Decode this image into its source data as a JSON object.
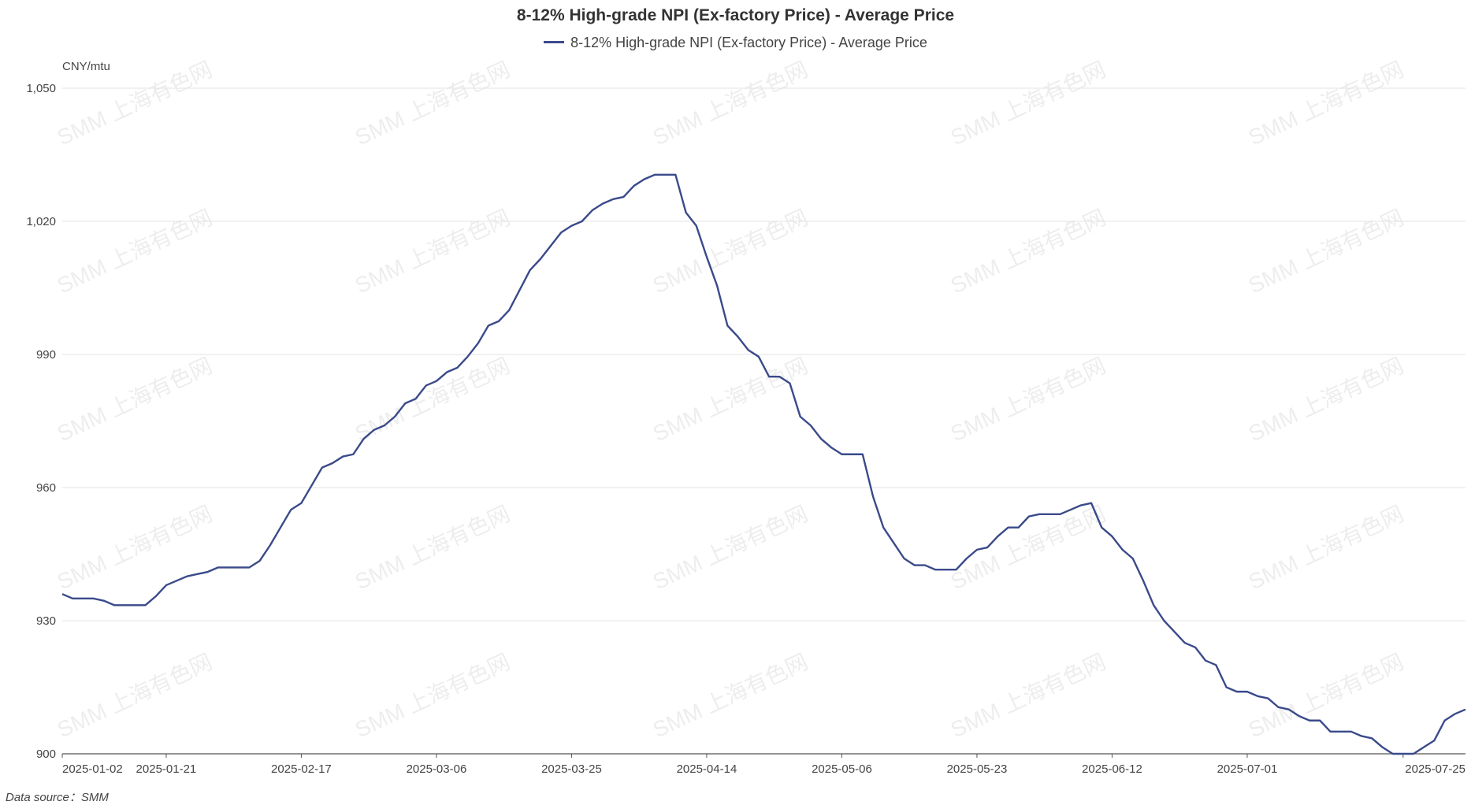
{
  "chart_data": {
    "type": "line",
    "title": "8-12% High-grade NPI (Ex-factory Price) - Average Price",
    "unit": "CNY/mtu",
    "source_label": "Data source：SMM",
    "watermark": "SMM 上海有色网",
    "ylim": [
      900,
      1050
    ],
    "yticks": [
      "1,050",
      "1,020",
      "990",
      "960",
      "930",
      "900"
    ],
    "ytick_values": [
      1050,
      1020,
      990,
      960,
      930,
      900
    ],
    "xtick_labels": [
      "2025-01-02",
      "2025-01-21",
      "2025-02-17",
      "2025-03-06",
      "2025-03-25",
      "2025-04-14",
      "2025-05-06",
      "2025-05-23",
      "2025-06-12",
      "2025-07-01",
      "2025-07-25"
    ],
    "xtick_indices": [
      0,
      10,
      23,
      36,
      49,
      62,
      75,
      88,
      101,
      114,
      129
    ],
    "grid": true,
    "legend_position": "top-center",
    "series": [
      {
        "name": "8-12% High-grade NPI (Ex-factory Price) - Average Price",
        "color": "#3a4a8a",
        "values": [
          936,
          935,
          935,
          935,
          934.5,
          933.5,
          933.5,
          933.5,
          933.5,
          935.5,
          938,
          939,
          940,
          940.5,
          941,
          942,
          942,
          942,
          942,
          943.5,
          947,
          951,
          955,
          956.5,
          960.5,
          964.5,
          965.5,
          967,
          967.5,
          971,
          973,
          974,
          976,
          979,
          980,
          983,
          984,
          986,
          987,
          989.5,
          992.5,
          996.5,
          997.5,
          1000,
          1004.5,
          1009,
          1011.5,
          1014.5,
          1017.5,
          1019,
          1020,
          1022.5,
          1024,
          1025,
          1025.5,
          1028,
          1029.5,
          1030.5,
          1030.5,
          1030.5,
          1022,
          1019,
          1012,
          1005.5,
          996.5,
          994,
          991,
          989.5,
          985,
          985,
          983.5,
          976,
          974,
          971,
          969,
          967.5,
          967.5,
          967.5,
          958,
          951,
          947.5,
          944,
          942.5,
          942.5,
          941.5,
          941.5,
          941.5,
          944,
          946,
          946.5,
          949,
          951,
          951,
          953.5,
          954,
          954,
          954,
          955,
          956,
          956.5,
          951,
          949,
          946,
          944,
          939,
          933.5,
          930,
          927.5,
          925,
          924,
          921,
          920,
          915,
          914,
          914,
          913,
          912.5,
          910.5,
          910,
          908.5,
          907.5,
          907.5,
          905,
          905,
          905,
          904,
          903.5,
          901.5,
          900,
          900,
          900,
          901.5,
          903,
          907.5,
          909,
          910
        ]
      }
    ]
  }
}
